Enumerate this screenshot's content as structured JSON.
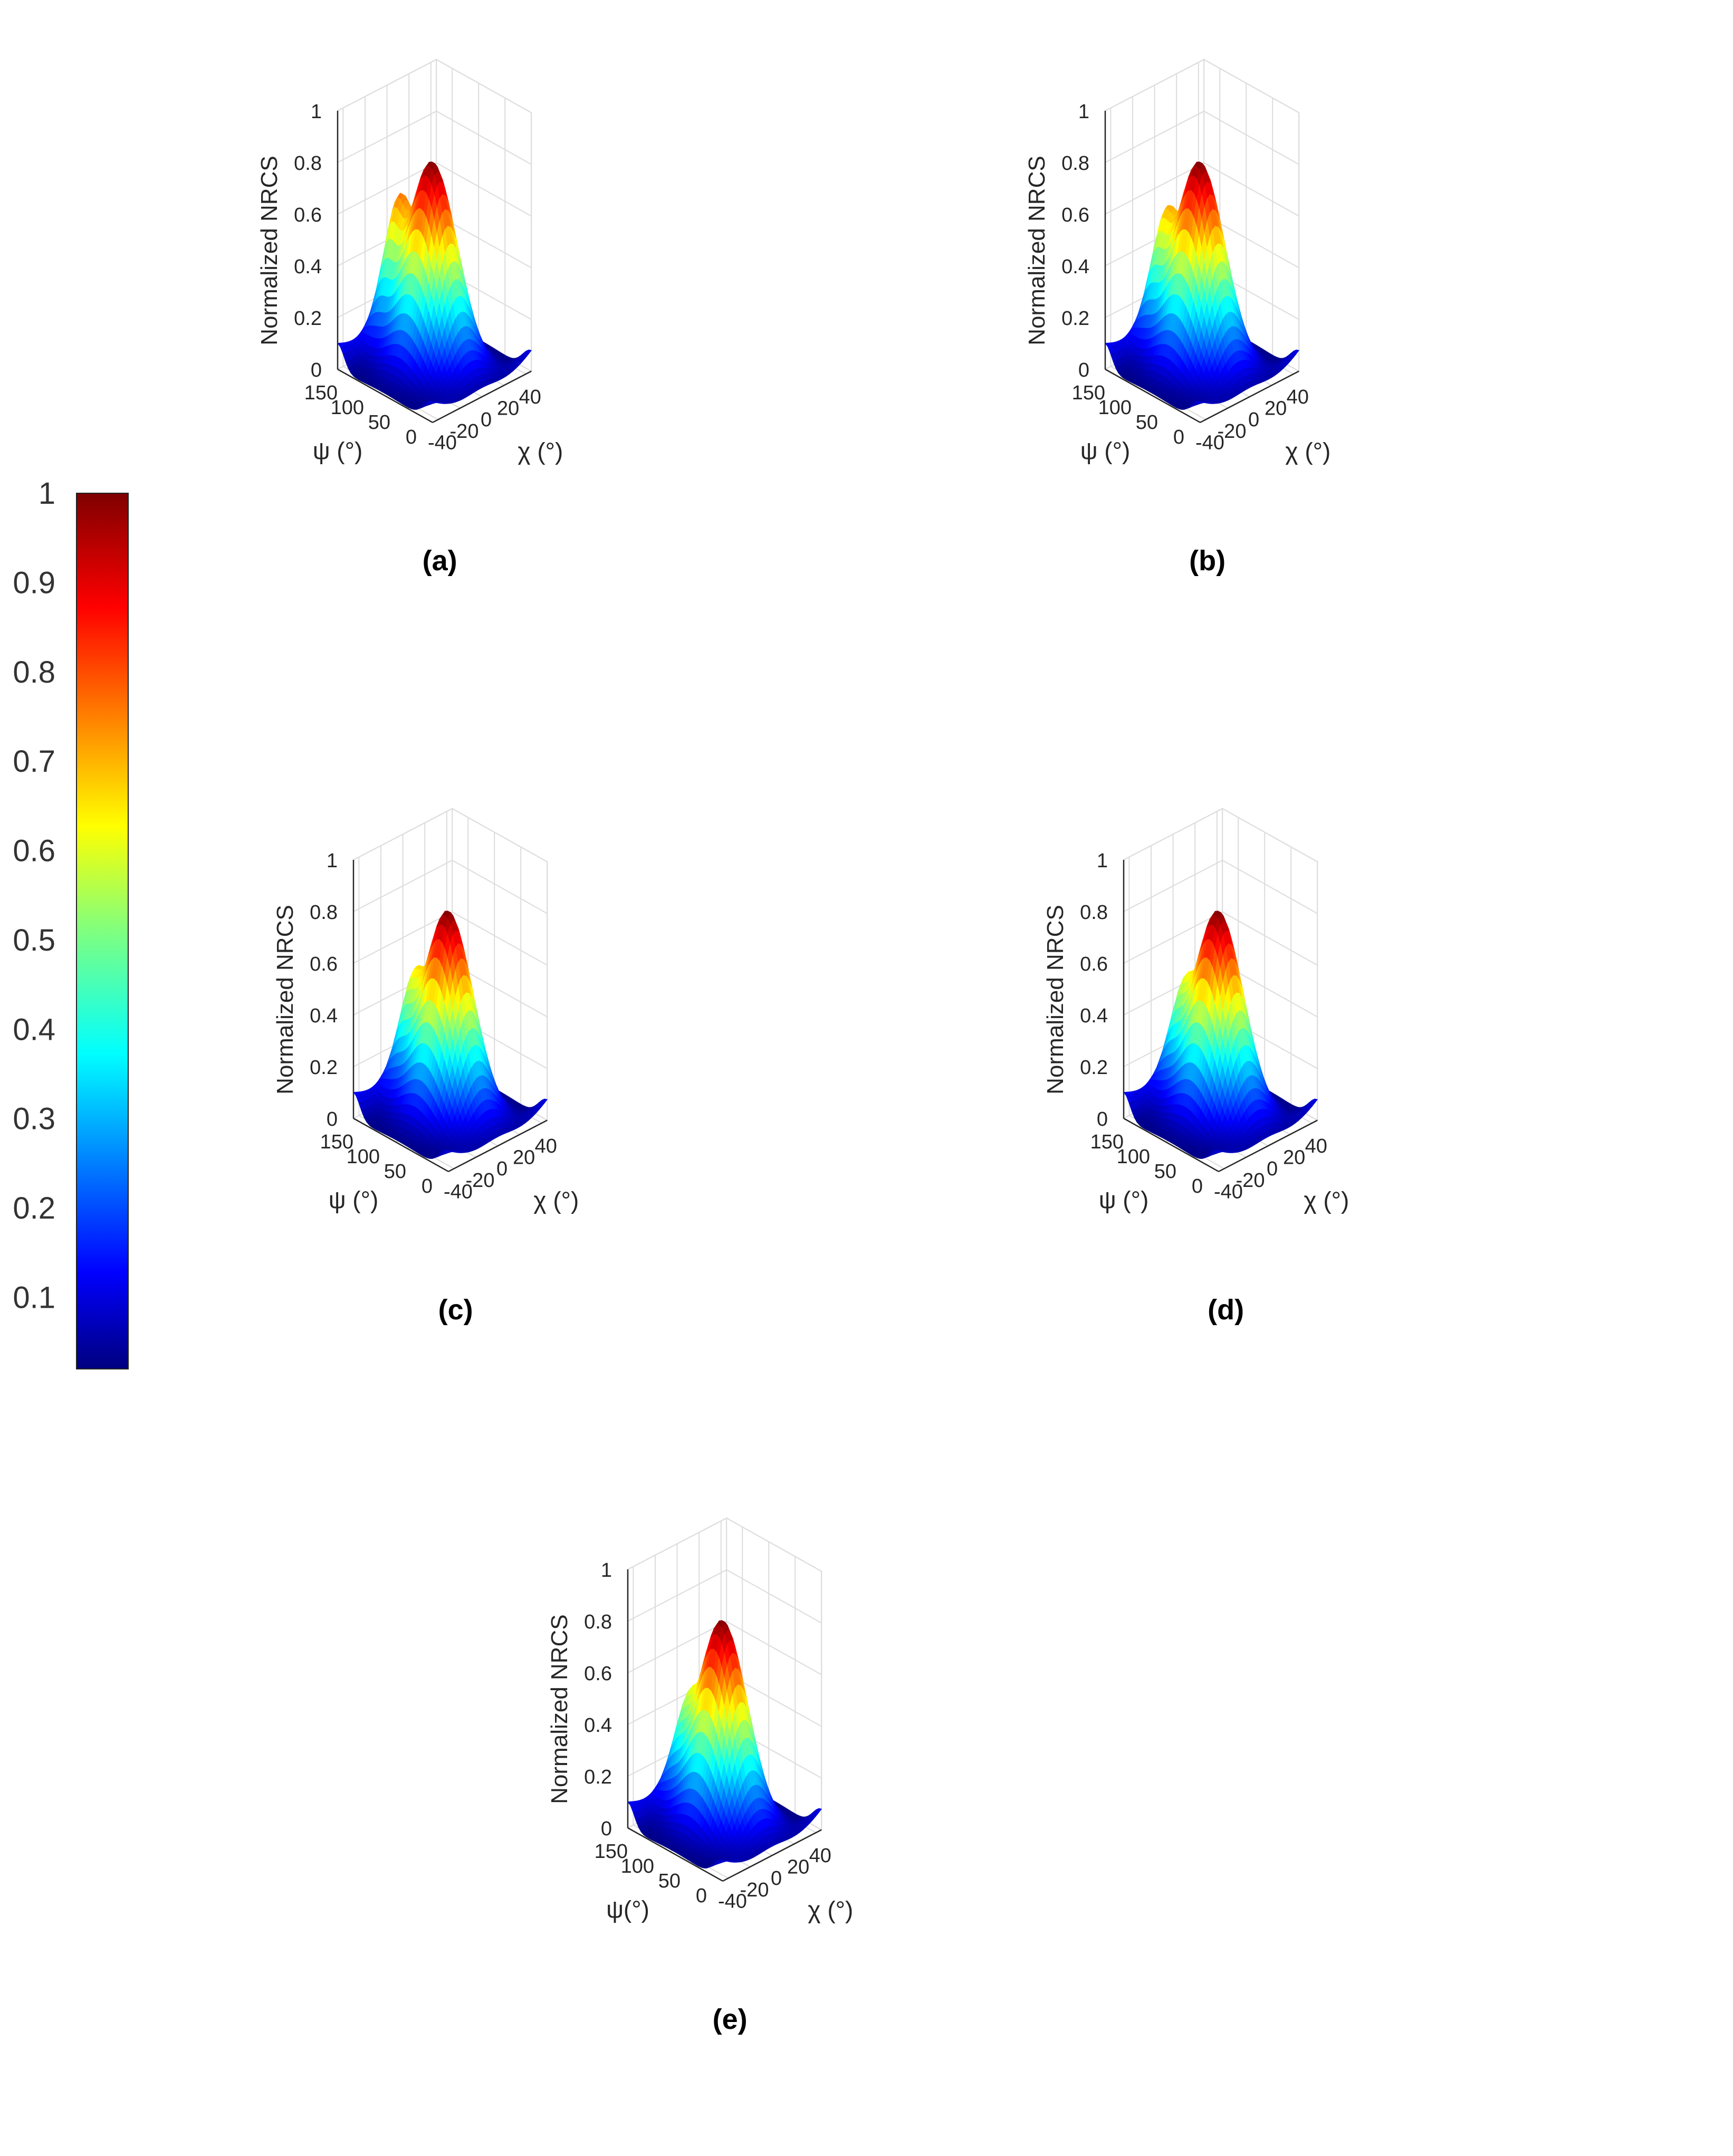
{
  "chart_data": [
    {
      "type": "surface",
      "panel_label": "(a)",
      "zlabel": "Normalized NRCS",
      "xlabel": "ψ (°)",
      "ylabel": "χ (°)",
      "x_ticks": [
        "0",
        "50",
        "100",
        "150"
      ],
      "y_ticks": [
        "-40",
        "-20",
        "0",
        "20",
        "40"
      ],
      "z_ticks": [
        "0",
        "0.2",
        "0.4",
        "0.6",
        "0.8",
        "1"
      ],
      "xlim": [
        0,
        180
      ],
      "ylim": [
        -45,
        45
      ],
      "zlim": [
        0,
        1
      ],
      "main_peak": {
        "psi": 95,
        "chi": 0,
        "value": 0.8
      },
      "side_lobe": {
        "psi": 160,
        "chi": 0,
        "value": 0.4
      },
      "edge_values": {
        "psi0_chi_pm45": 0.08,
        "psi180_chi_pm45": 0.1
      },
      "grid": true
    },
    {
      "type": "surface",
      "panel_label": "(b)",
      "zlabel": "Normalized NRCS",
      "xlabel": "ψ (°)",
      "ylabel": "χ (°)",
      "x_ticks": [
        "0",
        "50",
        "100",
        "150"
      ],
      "y_ticks": [
        "-40",
        "-20",
        "0",
        "20",
        "40"
      ],
      "z_ticks": [
        "0",
        "0.2",
        "0.4",
        "0.6",
        "0.8",
        "1"
      ],
      "xlim": [
        0,
        180
      ],
      "ylim": [
        -45,
        45
      ],
      "zlim": [
        0,
        1
      ],
      "main_peak": {
        "psi": 95,
        "chi": 0,
        "value": 0.8
      },
      "side_lobe": {
        "psi": 160,
        "chi": 0,
        "value": 0.35
      },
      "edge_values": {
        "psi0_chi_pm45": 0.08,
        "psi180_chi_pm45": 0.1
      },
      "grid": true
    },
    {
      "type": "surface",
      "panel_label": "(c)",
      "zlabel": "Normalized NRCS",
      "xlabel": "ψ (°)",
      "ylabel": "χ (°)",
      "x_ticks": [
        "0",
        "50",
        "100",
        "150"
      ],
      "y_ticks": [
        "-40",
        "-20",
        "0",
        "20",
        "40"
      ],
      "z_ticks": [
        "0",
        "0.2",
        "0.4",
        "0.6",
        "0.8",
        "1"
      ],
      "xlim": [
        0,
        180
      ],
      "ylim": [
        -45,
        45
      ],
      "zlim": [
        0,
        1
      ],
      "main_peak": {
        "psi": 95,
        "chi": 0,
        "value": 0.8
      },
      "side_lobe": {
        "psi": 160,
        "chi": 0,
        "value": 0.3
      },
      "edge_values": {
        "psi0_chi_pm45": 0.08,
        "psi180_chi_pm45": 0.1
      },
      "grid": true
    },
    {
      "type": "surface",
      "panel_label": "(d)",
      "zlabel": "Normalized NRCS",
      "xlabel": "ψ (°)",
      "ylabel": "χ (°)",
      "x_ticks": [
        "0",
        "50",
        "100",
        "150"
      ],
      "y_ticks": [
        "-40",
        "-20",
        "0",
        "20",
        "40"
      ],
      "z_ticks": [
        "0",
        "0.2",
        "0.4",
        "0.6",
        "0.8",
        "1"
      ],
      "xlim": [
        0,
        180
      ],
      "ylim": [
        -45,
        45
      ],
      "zlim": [
        0,
        1
      ],
      "main_peak": {
        "psi": 95,
        "chi": 0,
        "value": 0.8
      },
      "side_lobe": {
        "psi": 160,
        "chi": 0,
        "value": 0.27
      },
      "edge_values": {
        "psi0_chi_pm45": 0.08,
        "psi180_chi_pm45": 0.1
      },
      "grid": true
    },
    {
      "type": "surface",
      "panel_label": "(e)",
      "zlabel": "Normalized NRCS",
      "xlabel": "ψ(°)",
      "ylabel": "χ (°)",
      "x_ticks": [
        "0",
        "50",
        "100",
        "150"
      ],
      "y_ticks": [
        "-40",
        "-20",
        "0",
        "20",
        "40"
      ],
      "z_ticks": [
        "0",
        "0.2",
        "0.4",
        "0.6",
        "0.8",
        "1"
      ],
      "xlim": [
        0,
        180
      ],
      "ylim": [
        -45,
        45
      ],
      "zlim": [
        0,
        1
      ],
      "main_peak": {
        "psi": 95,
        "chi": 0,
        "value": 0.8
      },
      "side_lobe": {
        "psi": 160,
        "chi": 0,
        "value": 0.25
      },
      "edge_values": {
        "psi0_chi_pm45": 0.08,
        "psi180_chi_pm45": 0.1
      },
      "grid": true
    }
  ],
  "colorbar": {
    "colormap": "jet",
    "ticks": [
      "0.1",
      "0.2",
      "0.3",
      "0.4",
      "0.5",
      "0.6",
      "0.7",
      "0.8",
      "0.9",
      "1"
    ],
    "range": [
      0.02,
      1
    ]
  }
}
